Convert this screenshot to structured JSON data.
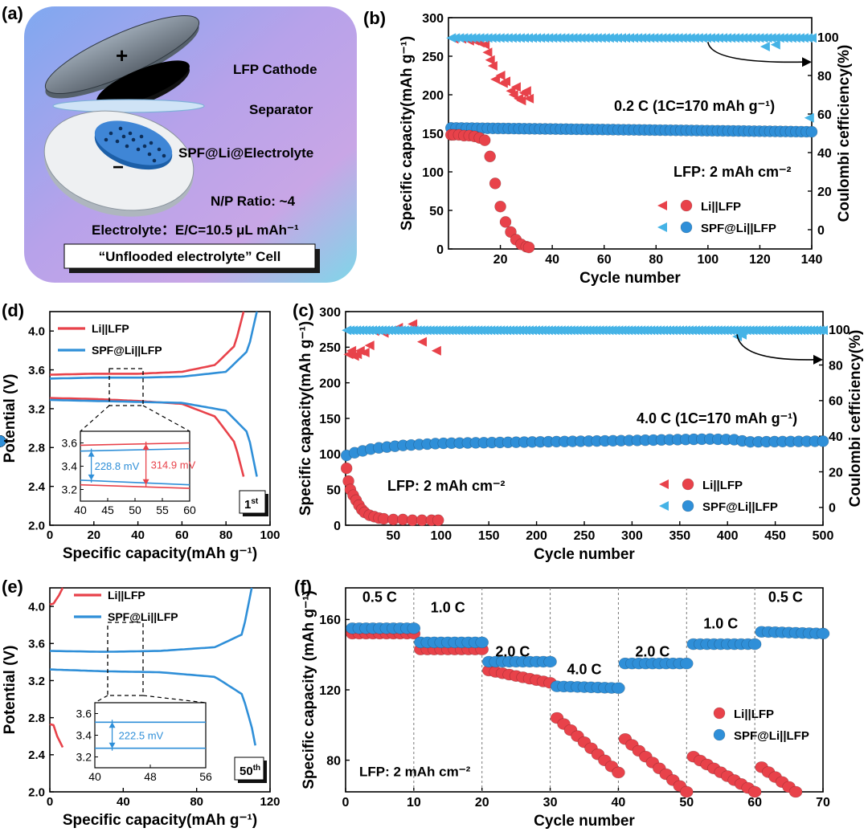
{
  "colors": {
    "red": "#e8424a",
    "blue": "#2f8fd8",
    "ce_red": "#e8424a",
    "ce_blue": "#45b3e6",
    "axis": "#000000",
    "cell_bg": "#b9a8e8"
  },
  "panel_a": {
    "tag": "(a)",
    "labels": [
      "LFP Cathode",
      "Separator",
      "SPF@Li@Electrolyte",
      "N/P Ratio: ~4",
      "Electrolyte：E/C=10.5 μL mAh⁻¹"
    ],
    "plus": "+",
    "minus": "−",
    "caption": "“Unflooded electrolyte” Cell"
  },
  "chart_data": [
    {
      "id": "b",
      "tag": "(b)",
      "type": "scatter",
      "xlabel": "Cycle number",
      "ylabel": "Specific capacity(mAh g⁻¹)",
      "y2label": "Coulombi cefficiency(%)",
      "xlim": [
        0,
        140
      ],
      "ylim": [
        0,
        300
      ],
      "y2lim": [
        -10,
        110
      ],
      "xticks": [
        20,
        40,
        60,
        80,
        100,
        120,
        140
      ],
      "yticks": [
        0,
        50,
        100,
        150,
        200,
        250,
        300
      ],
      "y2ticks": [
        0,
        20,
        40,
        60,
        80,
        100
      ],
      "annotations": [
        "0.2 C (1C=170 mAh g⁻¹)",
        "LFP: 2 mAh cm⁻²"
      ],
      "legend": "bottom-right",
      "legend_entries": [
        "Li||LFP",
        "SPF@Li||LFP"
      ],
      "series": [
        {
          "name": "Li||LFP",
          "kind": "capacity",
          "x": [
            1,
            2,
            4,
            6,
            8,
            10,
            12,
            14,
            16,
            18,
            20,
            22,
            24,
            26,
            28,
            30,
            31
          ],
          "y": [
            148,
            148,
            148,
            147,
            147,
            146,
            144,
            141,
            120,
            85,
            55,
            35,
            22,
            12,
            6,
            3,
            2
          ]
        },
        {
          "name": "SPF@Li||LFP",
          "kind": "capacity",
          "x_start": 1,
          "x_end": 140,
          "y_start": 157,
          "y_end": 152
        },
        {
          "name": "Li||LFP",
          "kind": "ce",
          "x": [
            2,
            5,
            8,
            10,
            12,
            14,
            15,
            16,
            17,
            18,
            20,
            21,
            22,
            24,
            25,
            26,
            27,
            28,
            29,
            30,
            31
          ],
          "y": [
            99,
            99,
            98,
            98,
            97,
            96,
            92,
            88,
            85,
            78,
            80,
            76,
            77,
            72,
            70,
            74,
            68,
            67,
            71,
            72,
            68
          ]
        },
        {
          "name": "SPF@Li||LFP",
          "kind": "ce",
          "x_start": 1,
          "x_end": 140,
          "y": 99.5,
          "dips": [
            [
              122,
              95
            ],
            [
              126,
              96
            ],
            [
              139,
              58
            ]
          ]
        }
      ]
    },
    {
      "id": "c",
      "tag": "(c)",
      "type": "scatter",
      "xlabel": "Cycle number",
      "ylabel": "Specific capacity(mAh g⁻¹)",
      "y2label": "Coulombi cefficiency(%)",
      "xlim": [
        0,
        500
      ],
      "ylim": [
        0,
        300
      ],
      "y2lim": [
        -10,
        110
      ],
      "xticks": [
        50,
        100,
        150,
        200,
        250,
        300,
        350,
        400,
        450,
        500
      ],
      "yticks": [
        0,
        50,
        100,
        150,
        200,
        250,
        300
      ],
      "y2ticks": [
        0,
        20,
        40,
        60,
        80,
        100
      ],
      "annotations": [
        "4.0 C (1C=170 mAh g⁻¹)",
        "LFP: 2 mAh cm⁻²"
      ],
      "legend": "bottom-right",
      "legend_entries": [
        "Li||LFP",
        "SPF@Li||LFP"
      ],
      "series": [
        {
          "name": "Li||LFP",
          "kind": "capacity",
          "x": [
            1,
            3,
            5,
            8,
            11,
            14,
            17,
            20,
            25,
            30,
            35,
            40,
            50,
            60,
            70,
            80,
            90,
            97
          ],
          "y": [
            80,
            62,
            50,
            42,
            35,
            28,
            22,
            18,
            14,
            12,
            10,
            9,
            8,
            8,
            7,
            7,
            7,
            7
          ]
        },
        {
          "name": "SPF@Li||LFP",
          "kind": "capacity",
          "points": [
            [
              1,
              98
            ],
            [
              10,
              102
            ],
            [
              30,
              108
            ],
            [
              60,
              112
            ],
            [
              100,
              115
            ],
            [
              200,
              117
            ],
            [
              300,
              119
            ],
            [
              380,
              121
            ],
            [
              410,
              120
            ],
            [
              420,
              117
            ],
            [
              500,
              118
            ]
          ]
        },
        {
          "name": "Li||LFP",
          "kind": "ce",
          "x": [
            3,
            6,
            9,
            12,
            15,
            20,
            25,
            30,
            40,
            55,
            70,
            80,
            95
          ],
          "y": [
            86,
            88,
            85,
            86,
            88,
            87,
            91,
            99,
            98,
            101,
            103,
            93,
            88
          ]
        },
        {
          "name": "SPF@Li||LFP",
          "kind": "ce",
          "x_start": 1,
          "x_end": 500,
          "y": 99.5,
          "dips": [
            [
              410,
              96
            ],
            [
              415,
              97
            ]
          ]
        }
      ]
    },
    {
      "id": "d",
      "tag": "(d)",
      "type": "line",
      "xlabel": "Specific capacity(mAh g⁻¹)",
      "ylabel": "Potential  (V)",
      "xlim": [
        0,
        100
      ],
      "ylim": [
        2.0,
        4.2
      ],
      "xticks": [
        0,
        20,
        40,
        60,
        80,
        100
      ],
      "yticks": [
        2.0,
        2.4,
        2.8,
        3.2,
        3.6,
        4.0
      ],
      "legend": "top-left",
      "legend_entries": [
        "Li||LFP",
        "SPF@Li||LFP"
      ],
      "cycle_label": "1st",
      "series": [
        {
          "name": "Li||LFP",
          "charge": [
            [
              0,
              3.55
            ],
            [
              20,
              3.56
            ],
            [
              40,
              3.56
            ],
            [
              60,
              3.58
            ],
            [
              75,
              3.65
            ],
            [
              84,
              3.85
            ],
            [
              88,
              4.2
            ]
          ],
          "discharge": [
            [
              0,
              3.31
            ],
            [
              20,
              3.3
            ],
            [
              40,
              3.28
            ],
            [
              60,
              3.25
            ],
            [
              75,
              3.12
            ],
            [
              84,
              2.85
            ],
            [
              88,
              2.5
            ]
          ]
        },
        {
          "name": "SPF@Li||LFP",
          "charge": [
            [
              0,
              3.51
            ],
            [
              20,
              3.52
            ],
            [
              40,
              3.52
            ],
            [
              60,
              3.53
            ],
            [
              80,
              3.58
            ],
            [
              90,
              3.8
            ],
            [
              94,
              4.2
            ]
          ],
          "discharge": [
            [
              0,
              3.29
            ],
            [
              20,
              3.28
            ],
            [
              40,
              3.27
            ],
            [
              60,
              3.26
            ],
            [
              80,
              3.18
            ],
            [
              90,
              2.95
            ],
            [
              94,
              2.5
            ]
          ]
        }
      ],
      "inset": {
        "xticks": [
          40,
          45,
          50,
          55,
          60
        ],
        "yticks": [
          3.2,
          3.4,
          3.6
        ],
        "gap_labels": [
          "228.8 mV",
          "314.9 mV"
        ]
      }
    },
    {
      "id": "e",
      "tag": "(e)",
      "type": "line",
      "xlabel": "Specific capacity(mAh g⁻¹)",
      "ylabel": "Potential  (V)",
      "xlim": [
        0,
        120
      ],
      "ylim": [
        2.0,
        4.2
      ],
      "xticks": [
        0,
        40,
        80,
        120
      ],
      "yticks": [
        2.0,
        2.4,
        2.8,
        3.2,
        3.6,
        4.0
      ],
      "legend": "top-left",
      "legend_entries": [
        "Li||LFP",
        "SPF@Li||LFP"
      ],
      "cycle_label": "50th",
      "series": [
        {
          "name": "Li||LFP",
          "charge": [
            [
              0,
              4.02
            ],
            [
              2,
              4.03
            ],
            [
              5,
              4.12
            ],
            [
              7,
              4.2
            ]
          ],
          "discharge": [
            [
              0,
              2.73
            ],
            [
              2,
              2.72
            ],
            [
              4,
              2.6
            ],
            [
              7,
              2.48
            ]
          ]
        },
        {
          "name": "SPF@Li||LFP",
          "charge": [
            [
              0,
              3.52
            ],
            [
              30,
              3.51
            ],
            [
              60,
              3.52
            ],
            [
              90,
              3.56
            ],
            [
              105,
              3.7
            ],
            [
              108,
              4.0
            ],
            [
              110,
              4.2
            ]
          ],
          "discharge": [
            [
              0,
              3.32
            ],
            [
              30,
              3.3
            ],
            [
              60,
              3.29
            ],
            [
              90,
              3.24
            ],
            [
              105,
              3.05
            ],
            [
              110,
              2.7
            ],
            [
              112,
              2.5
            ]
          ]
        }
      ],
      "inset": {
        "xticks": [
          40,
          48,
          56
        ],
        "yticks": [
          3.2,
          3.4,
          3.6
        ],
        "gap_labels": [
          "222.5 mV"
        ]
      }
    },
    {
      "id": "f",
      "tag": "(f)",
      "type": "scatter",
      "xlabel": "Cycle number",
      "ylabel": "Specific capacity  (mAh g⁻¹)",
      "xlim": [
        0,
        70
      ],
      "ylim": [
        62,
        178
      ],
      "xticks": [
        0,
        10,
        20,
        30,
        40,
        50,
        60,
        70
      ],
      "yticks": [
        80,
        120,
        160
      ],
      "rate_labels": [
        "0.5 C",
        "1.0 C",
        "2.0 C",
        "4.0 C",
        "2.0 C",
        "1.0 C",
        "0.5 C"
      ],
      "annotations": [
        "LFP: 2 mAh cm⁻²"
      ],
      "legend": "center-right",
      "legend_entries": [
        "Li||LFP",
        "SPF@Li||LFP"
      ],
      "series": [
        {
          "name": "Li||LFP",
          "segments": [
            [
              1,
              10,
              152,
              152
            ],
            [
              11,
              20,
              143,
              143
            ],
            [
              21,
              30,
              131,
              124
            ],
            [
              31,
              40,
              104,
              73
            ],
            [
              41,
              50,
              92,
              62
            ],
            [
              51,
              60,
              82,
              62
            ],
            [
              61,
              66,
              76,
              62
            ]
          ]
        },
        {
          "name": "SPF@Li||LFP",
          "segments": [
            [
              1,
              10,
              155,
              155
            ],
            [
              11,
              20,
              147,
              147
            ],
            [
              21,
              30,
              136,
              136
            ],
            [
              31,
              40,
              122,
              121
            ],
            [
              41,
              50,
              135,
              135
            ],
            [
              51,
              60,
              146,
              146
            ],
            [
              61,
              70,
              153,
              152
            ]
          ]
        }
      ]
    }
  ]
}
